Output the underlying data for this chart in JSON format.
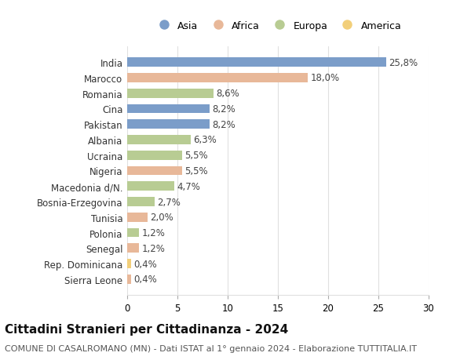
{
  "countries": [
    "India",
    "Marocco",
    "Romania",
    "Cina",
    "Pakistan",
    "Albania",
    "Ucraina",
    "Nigeria",
    "Macedonia d/N.",
    "Bosnia-Erzegovina",
    "Tunisia",
    "Polonia",
    "Senegal",
    "Rep. Dominicana",
    "Sierra Leone"
  ],
  "values": [
    25.8,
    18.0,
    8.6,
    8.2,
    8.2,
    6.3,
    5.5,
    5.5,
    4.7,
    2.7,
    2.0,
    1.2,
    1.2,
    0.4,
    0.4
  ],
  "labels": [
    "25,8%",
    "18,0%",
    "8,6%",
    "8,2%",
    "8,2%",
    "6,3%",
    "5,5%",
    "5,5%",
    "4,7%",
    "2,7%",
    "2,0%",
    "1,2%",
    "1,2%",
    "0,4%",
    "0,4%"
  ],
  "continents": [
    "Asia",
    "Africa",
    "Europa",
    "Asia",
    "Asia",
    "Europa",
    "Europa",
    "Africa",
    "Europa",
    "Europa",
    "Africa",
    "Europa",
    "Africa",
    "America",
    "Africa"
  ],
  "colors": {
    "Asia": "#7b9dc9",
    "Africa": "#e8b899",
    "Europa": "#b8cc93",
    "America": "#f2cf7a"
  },
  "legend_order": [
    "Asia",
    "Africa",
    "Europa",
    "America"
  ],
  "title": "Cittadini Stranieri per Cittadinanza - 2024",
  "subtitle": "COMUNE DI CASALROMANO (MN) - Dati ISTAT al 1° gennaio 2024 - Elaborazione TUTTITALIA.IT",
  "xlim": [
    0,
    30
  ],
  "xticks": [
    0,
    5,
    10,
    15,
    20,
    25,
    30
  ],
  "background_color": "#ffffff",
  "grid_color": "#e0e0e0",
  "bar_height": 0.6,
  "label_fontsize": 8.5,
  "tick_fontsize": 8.5,
  "ytick_fontsize": 8.5,
  "title_fontsize": 11,
  "subtitle_fontsize": 8,
  "legend_fontsize": 9
}
